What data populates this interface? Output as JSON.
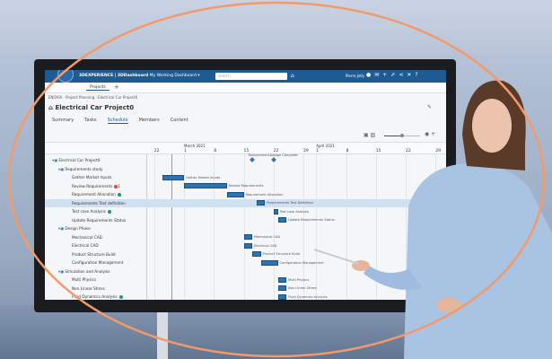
{
  "app": {
    "brand": "3DEXPERIENCE | 3DDashboard",
    "dashboard": "My Working Dashboard",
    "search_placeholder": "Search",
    "user": "Pierre Jolly",
    "tab": "Projects"
  },
  "breadcrumb": "ENOVIA · Project Planning · Electrical Car Project0",
  "project_title": "Electrical Car Project0",
  "tabs": [
    "Summary",
    "Tasks",
    "Schedule",
    "Members",
    "Content"
  ],
  "active_tab": "Schedule",
  "timeline": {
    "months": [
      {
        "label": "March 2021",
        "date": "2021-03-01"
      },
      {
        "label": "April 2021",
        "date": "2021-04-01"
      }
    ],
    "ticks": [
      {
        "label": "22",
        "date": "2021-02-22"
      },
      {
        "label": "1",
        "date": "2021-03-01"
      },
      {
        "label": "8",
        "date": "2021-03-08"
      },
      {
        "label": "15",
        "date": "2021-03-15"
      },
      {
        "label": "22",
        "date": "2021-03-22"
      },
      {
        "label": "29",
        "date": "2021-03-29"
      },
      {
        "label": "1",
        "date": "2021-04-01"
      },
      {
        "label": "8",
        "date": "2021-04-08"
      },
      {
        "label": "15",
        "date": "2021-04-15"
      },
      {
        "label": "22",
        "date": "2021-04-22"
      },
      {
        "label": "29",
        "date": "2021-04-29"
      }
    ],
    "today": "2021-02-26"
  },
  "tasks": [
    {
      "name": "Electrical Car Project0",
      "level": 0,
      "group": true
    },
    {
      "name": "Requirements study",
      "level": 1,
      "group": true
    },
    {
      "name": "Gather Market Inputs",
      "level": 2,
      "start": "2021-02-24",
      "end": "2021-03-01",
      "bar_label": "Gather Market Inputs"
    },
    {
      "name": "Review Requirements",
      "level": 2,
      "status": "red",
      "badge": "1",
      "start": "2021-03-01",
      "end": "2021-03-11",
      "bar_label": "Review Requirements"
    },
    {
      "name": "Requirement Allocation",
      "level": 2,
      "status": "green",
      "start": "2021-03-11",
      "end": "2021-03-15",
      "bar_label": "Requirement Allocation"
    },
    {
      "name": "Requirements Test definition",
      "level": 2,
      "selected": true,
      "start": "2021-03-18",
      "end": "2021-03-20",
      "bar_label": "Requirements Test Definition"
    },
    {
      "name": "Test case Analysis",
      "level": 2,
      "status": "green",
      "start": "2021-03-22",
      "end": "2021-03-23",
      "bar_label": "Test case Analysis"
    },
    {
      "name": "Update Requirements Status",
      "level": 2,
      "start": "2021-03-23",
      "end": "2021-03-25",
      "bar_label": "Update Requirements Status"
    },
    {
      "name": "Design Phase",
      "level": 1,
      "group": true
    },
    {
      "name": "Mechanical CAD",
      "level": 2,
      "start": "2021-03-15",
      "end": "2021-03-17",
      "bar_label": "Mechanical CAD"
    },
    {
      "name": "Electrical CAD",
      "level": 2,
      "start": "2021-03-15",
      "end": "2021-03-17",
      "bar_label": "Electrical CAD"
    },
    {
      "name": "Product Structure Build",
      "level": 2,
      "start": "2021-03-17",
      "end": "2021-03-19",
      "bar_label": "Product Structure Build"
    },
    {
      "name": "Configuration Management",
      "level": 2,
      "start": "2021-03-19",
      "end": "2021-03-23",
      "bar_label": "Configuration Management"
    },
    {
      "name": "Simulation and Analysis",
      "level": 1,
      "group": true
    },
    {
      "name": "Multi Physics",
      "level": 2,
      "start": "2021-03-23",
      "end": "2021-03-25",
      "bar_label": "Multi Physics"
    },
    {
      "name": "Non Linear Stress",
      "level": 2,
      "start": "2021-03-23",
      "end": "2021-03-25",
      "bar_label": "Non Linear Stress"
    },
    {
      "name": "Fluid Dynamics Analysis",
      "level": 2,
      "status": "green",
      "start": "2021-03-23",
      "end": "2021-03-25",
      "bar_label": "Fluid Dynamics Analysis"
    }
  ],
  "milestones": [
    {
      "label": "Requirement...",
      "date": "2021-03-17"
    },
    {
      "label": "Design Complete",
      "date": "2021-03-22"
    }
  ],
  "colors": {
    "brand_blue": "#1f5b93",
    "bar": "#2c73b3",
    "ring": "#f39a6b"
  }
}
